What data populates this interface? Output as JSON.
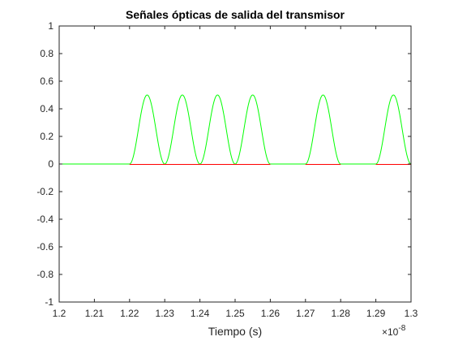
{
  "chart_data": {
    "type": "line",
    "title": "Señales ópticas de salida del transmisor",
    "xlabel": "Tiempo (s)",
    "ylabel": "",
    "x_multiplier_base": "×10",
    "x_multiplier_exp": "-8",
    "xlim": [
      1.2,
      1.3
    ],
    "ylim": [
      -1,
      1
    ],
    "x_ticks": [
      "1.2",
      "1.21",
      "1.22",
      "1.23",
      "1.24",
      "1.25",
      "1.26",
      "1.27",
      "1.28",
      "1.29",
      "1.3"
    ],
    "y_ticks": [
      "1",
      "0.8",
      "0.6",
      "0.4",
      "0.2",
      "0",
      "-0.2",
      "-0.4",
      "-0.6",
      "-0.8",
      "-1"
    ],
    "grid": false,
    "legend": "none",
    "colors": {
      "green": "#00ff00",
      "red": "#ff0000",
      "axis": "#262626"
    },
    "series": [
      {
        "color": "#00ff00",
        "baseline": 0,
        "pulse_width": 0.01,
        "pulses": [
          {
            "center": 1.225,
            "peak": 0.5
          },
          {
            "center": 1.235,
            "peak": 0.5
          },
          {
            "center": 1.245,
            "peak": 0.5
          },
          {
            "center": 1.255,
            "peak": 0.5
          },
          {
            "center": 1.275,
            "peak": 0.5
          },
          {
            "center": 1.295,
            "peak": 0.5
          }
        ],
        "x_range": [
          1.2,
          1.3
        ]
      },
      {
        "color": "#ff0000",
        "value": 0,
        "segments": [
          [
            1.22,
            1.26
          ],
          [
            1.27,
            1.28
          ],
          [
            1.29,
            1.3
          ]
        ]
      }
    ]
  }
}
